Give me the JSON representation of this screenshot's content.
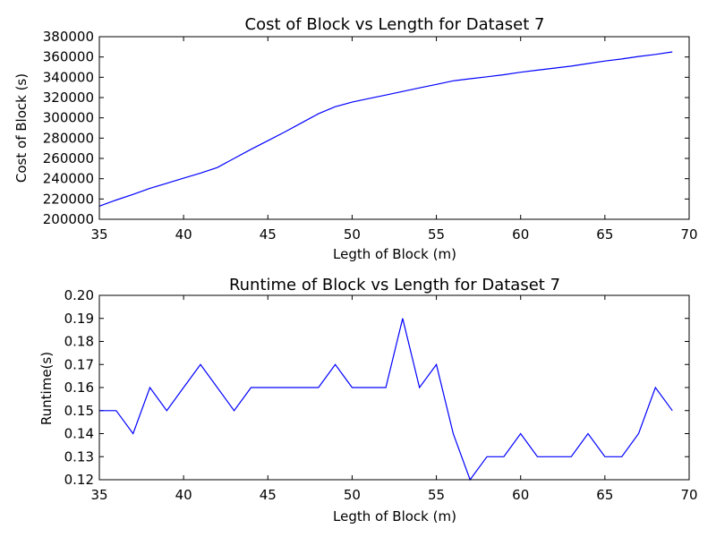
{
  "chart_data": [
    {
      "type": "line",
      "title": "Cost of Block vs Length for Dataset 7",
      "xlabel": "Legth of Block (m)",
      "ylabel": "Cost of Block (s)",
      "xlim": [
        35,
        70
      ],
      "ylim": [
        200000,
        380000
      ],
      "xticks": [
        "35",
        "40",
        "45",
        "50",
        "55",
        "60",
        "65",
        "70"
      ],
      "yticks": [
        "200000",
        "220000",
        "240000",
        "260000",
        "280000",
        "300000",
        "320000",
        "340000",
        "360000",
        "380000"
      ],
      "grid": false,
      "line_color": "#0000ff",
      "x": [
        35,
        36,
        37,
        38,
        39,
        40,
        41,
        42,
        43,
        44,
        45,
        46,
        47,
        48,
        49,
        50,
        51,
        52,
        53,
        54,
        55,
        56,
        57,
        58,
        59,
        60,
        61,
        62,
        63,
        64,
        65,
        66,
        67,
        68,
        69
      ],
      "values": [
        213000,
        219000,
        224500,
        230500,
        235500,
        240500,
        245500,
        251000,
        260000,
        269000,
        277500,
        286000,
        295000,
        304000,
        311000,
        315500,
        319000,
        322500,
        326000,
        329500,
        333000,
        336500,
        338500,
        340500,
        342500,
        345000,
        347000,
        349000,
        351000,
        353500,
        356000,
        358000,
        360500,
        362500,
        365000
      ]
    },
    {
      "type": "line",
      "title": "Runtime of Block vs Length for Dataset 7",
      "xlabel": "Legth of Block (m)",
      "ylabel": "Runtime(s)",
      "xlim": [
        35,
        70
      ],
      "ylim": [
        0.12,
        0.2
      ],
      "xticks": [
        "35",
        "40",
        "45",
        "50",
        "55",
        "60",
        "65",
        "70"
      ],
      "yticks": [
        "0.12",
        "0.13",
        "0.14",
        "0.15",
        "0.16",
        "0.17",
        "0.18",
        "0.19",
        "0.20"
      ],
      "grid": false,
      "line_color": "#0000ff",
      "x": [
        35,
        36,
        37,
        38,
        39,
        40,
        41,
        42,
        43,
        44,
        45,
        46,
        47,
        48,
        49,
        50,
        51,
        52,
        53,
        54,
        55,
        56,
        57,
        58,
        59,
        60,
        61,
        62,
        63,
        64,
        65,
        66,
        67,
        68,
        69
      ],
      "values": [
        0.15,
        0.15,
        0.14,
        0.16,
        0.15,
        0.16,
        0.17,
        0.16,
        0.15,
        0.16,
        0.16,
        0.16,
        0.16,
        0.16,
        0.17,
        0.16,
        0.16,
        0.16,
        0.19,
        0.16,
        0.17,
        0.14,
        0.12,
        0.13,
        0.13,
        0.14,
        0.13,
        0.13,
        0.13,
        0.14,
        0.13,
        0.13,
        0.14,
        0.16,
        0.15
      ]
    }
  ]
}
